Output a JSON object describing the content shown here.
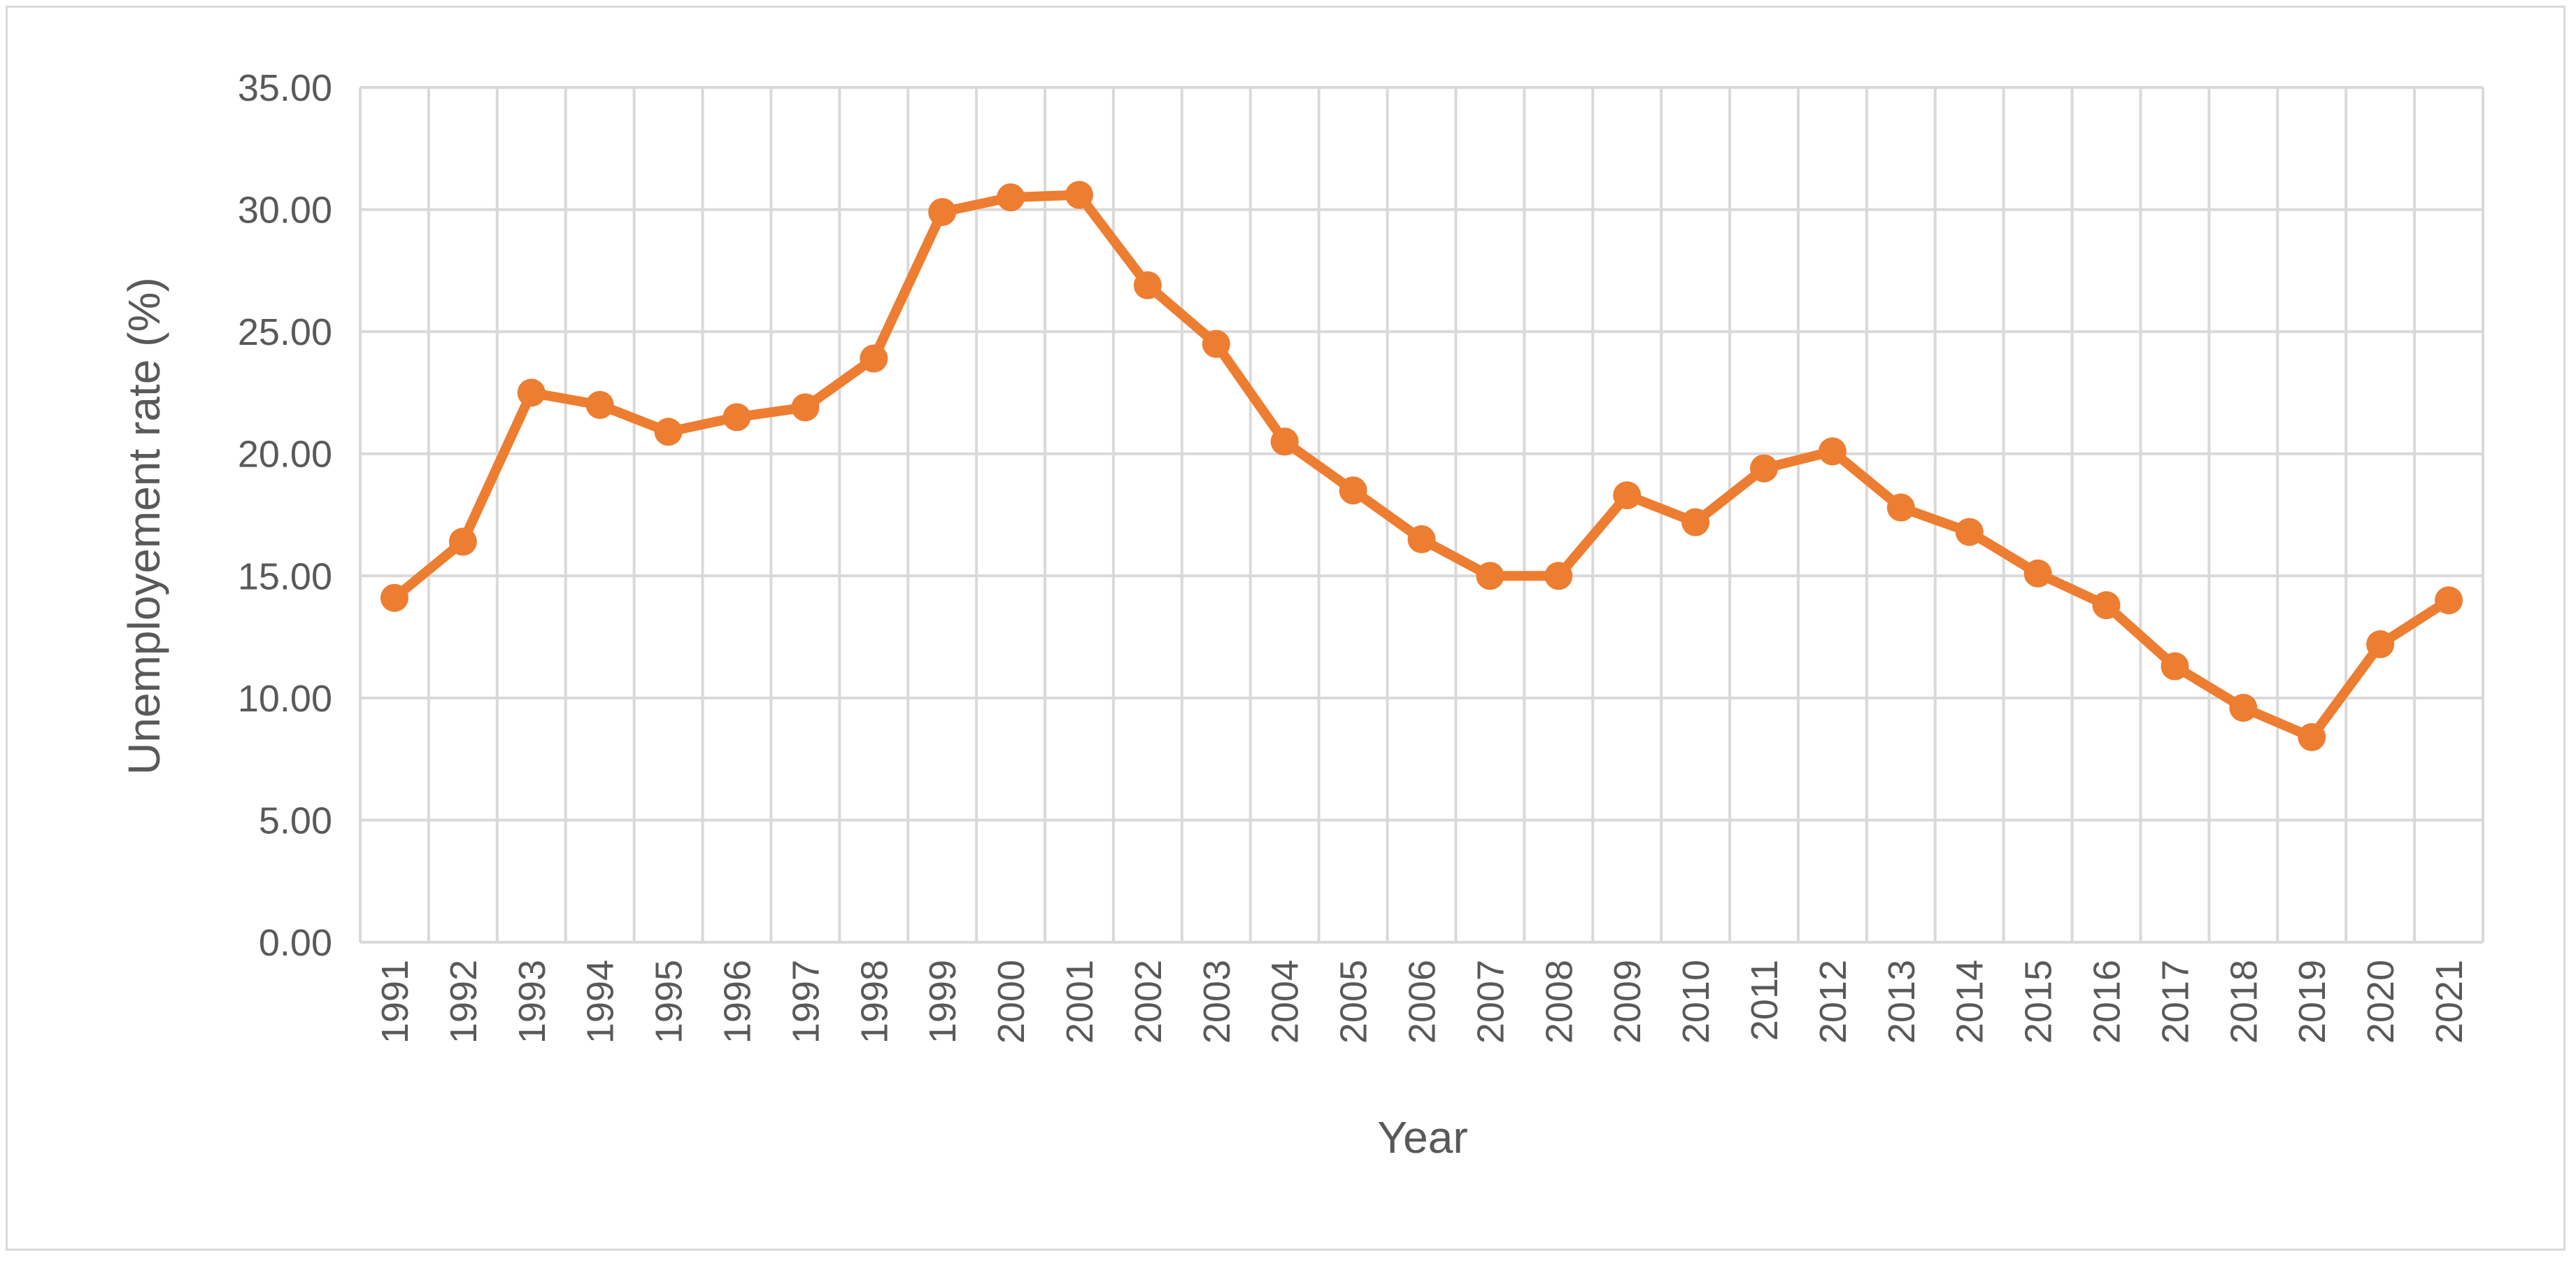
{
  "chart_data": {
    "type": "line",
    "title": "",
    "xlabel": "Year",
    "ylabel": "Unemployement rate (%)",
    "ylim": [
      0,
      35
    ],
    "y_ticks": [
      "0.00",
      "5.00",
      "10.00",
      "15.00",
      "20.00",
      "25.00",
      "30.00",
      "35.00"
    ],
    "x": [
      "1991",
      "1992",
      "1993",
      "1994",
      "1995",
      "1996",
      "1997",
      "1998",
      "1999",
      "2000",
      "2001",
      "2002",
      "2003",
      "2004",
      "2005",
      "2006",
      "2007",
      "2008",
      "2009",
      "2010",
      "2011",
      "2012",
      "2013",
      "2014",
      "2015",
      "2016",
      "2017",
      "2018",
      "2019",
      "2020",
      "2021"
    ],
    "series": [
      {
        "color": "#ed7d31",
        "values": [
          14.1,
          16.4,
          22.5,
          22.0,
          20.9,
          21.5,
          21.9,
          23.9,
          29.9,
          30.5,
          30.6,
          26.9,
          24.5,
          20.5,
          18.5,
          16.5,
          15.0,
          15.0,
          18.3,
          17.2,
          19.4,
          20.1,
          17.8,
          16.8,
          15.1,
          13.8,
          11.3,
          9.6,
          8.4,
          12.2,
          14.0
        ]
      }
    ],
    "grid": true,
    "gridline_color": "#d9d9d9",
    "legend": "none"
  }
}
